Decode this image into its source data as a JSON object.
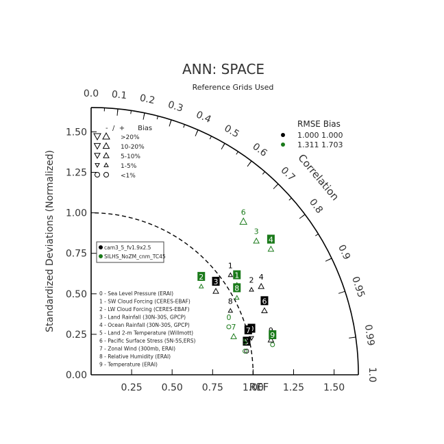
{
  "chart_data": {
    "type": "scatter",
    "subtype": "taylor-diagram",
    "title": "ANN: SPACE",
    "subtitle": "Reference Grids Used",
    "ylabel": "Standardized Deviations (Normalized)",
    "arc_label": "Correlation",
    "ref_label": "REF",
    "std_range": [
      0,
      1.65
    ],
    "std_ticks": [
      "0.00",
      "0.25",
      "0.50",
      "0.75",
      "1.00",
      "1.25",
      "1.50"
    ],
    "x_tick_labels": [
      "0.25",
      "0.50",
      "0.75",
      "1.00",
      "1.25",
      "1.50"
    ],
    "corr_ticks": [
      "0.0",
      "0.1",
      "0.2",
      "0.3",
      "0.4",
      "0.5",
      "0.6",
      "0.7",
      "0.8",
      "0.9",
      "0.95",
      "0.99",
      "1.0"
    ],
    "bias_legend": {
      "header": "-  /  +      Bias",
      "rows": [
        ">20%",
        "10-20%",
        "5-10%",
        "1-5%",
        "<1%"
      ]
    },
    "rmse_table": {
      "header": "RMSE  Bias",
      "rows": [
        {
          "values": "1.000 1.000",
          "color": "#000000"
        },
        {
          "values": "1.311 1.703",
          "color": "#1a7a1a"
        }
      ]
    },
    "series": [
      {
        "name": "cam3_5_fv1.9x2.5",
        "color": "#000000",
        "points": [
          {
            "id": "0",
            "x": 0.99,
            "y": 0.26,
            "box": true,
            "marker": "tri-down",
            "msize": 3
          },
          {
            "id": "1",
            "x": 0.86,
            "y": 0.65,
            "box": false,
            "marker": "tri-up",
            "msize": 3
          },
          {
            "id": "2",
            "x": 0.99,
            "y": 0.56,
            "box": false,
            "marker": "tri-up",
            "msize": 3
          },
          {
            "id": "3",
            "x": 0.77,
            "y": 0.55,
            "box": true,
            "marker": "tri-up",
            "msize": 4
          },
          {
            "id": "4",
            "x": 1.05,
            "y": 0.58,
            "box": false,
            "marker": "tri-up",
            "msize": 4
          },
          {
            "id": "5",
            "x": 0.96,
            "y": 0.18,
            "box": true,
            "marker": "circle",
            "msize": 3
          },
          {
            "id": "6",
            "x": 1.07,
            "y": 0.43,
            "box": true,
            "marker": "tri-up",
            "msize": 4
          },
          {
            "id": "7",
            "x": 0.97,
            "y": 0.25,
            "box": true,
            "marker": "tri-down",
            "msize": 4
          },
          {
            "id": "8",
            "x": 0.86,
            "y": 0.43,
            "box": false,
            "marker": "tri-up",
            "msize": 3
          },
          {
            "id": "9",
            "x": 1.11,
            "y": 0.25,
            "box": false,
            "marker": "tri-up",
            "msize": 4
          }
        ]
      },
      {
        "name": "SILHS_NoZM_cnm_TC45",
        "color": "#1a7a1a",
        "points": [
          {
            "id": "0",
            "x": 0.85,
            "y": 0.33,
            "box": false,
            "marker": "circle",
            "msize": 3
          },
          {
            "id": "1",
            "x": 0.9,
            "y": 0.59,
            "box": true,
            "marker": "tri-up",
            "msize": 3
          },
          {
            "id": "2",
            "x": 0.68,
            "y": 0.58,
            "box": true,
            "marker": "tri-up",
            "msize": 3
          },
          {
            "id": "3",
            "x": 1.02,
            "y": 0.86,
            "box": false,
            "marker": "tri-up",
            "msize": 4
          },
          {
            "id": "4",
            "x": 1.11,
            "y": 0.81,
            "box": true,
            "marker": "tri-up",
            "msize": 4
          },
          {
            "id": "5",
            "x": 0.95,
            "y": 0.18,
            "box": false,
            "marker": "circle",
            "msize": 3
          },
          {
            "id": "6",
            "x": 0.94,
            "y": 0.98,
            "box": false,
            "marker": "tri-up",
            "msize": 5
          },
          {
            "id": "7",
            "x": 0.88,
            "y": 0.27,
            "box": false,
            "marker": "tri-up",
            "msize": 4
          },
          {
            "id": "8",
            "x": 0.9,
            "y": 0.51,
            "box": true,
            "marker": "tri-up",
            "msize": 3
          },
          {
            "id": "9",
            "x": 1.12,
            "y": 0.22,
            "box": true,
            "marker": "circle",
            "msize": 3
          }
        ]
      }
    ],
    "variable_list": [
      "0 - Sea Level Pressure (ERAI)",
      "1 - SW Cloud Forcing (CERES-EBAF)",
      "2 - LW Cloud Forcing (CERES-EBAF)",
      "3 - Land Rainfall (30N-30S, GPCP)",
      "4 - Ocean Rainfall (30N-30S, GPCP)",
      "5 - Land 2-m Temperature (Willmott)",
      "6 - Pacific Surface Stress (5N-5S,ERS)",
      "7 - Zonal Wind (300mb, ERAI)",
      "8 - Relative Humidity (ERAI)",
      "9 - Temperature (ERAI)"
    ]
  }
}
